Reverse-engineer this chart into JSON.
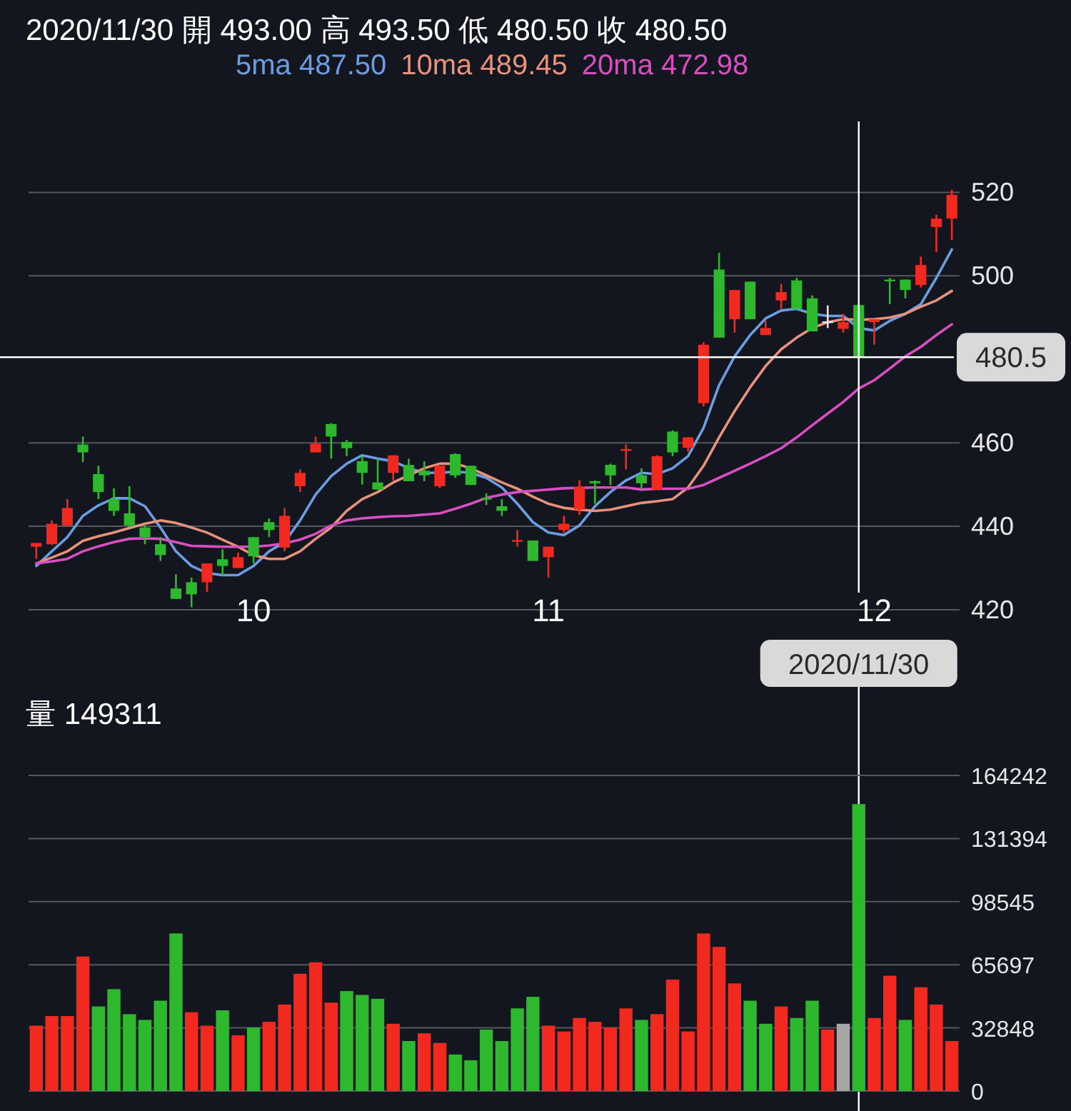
{
  "chart_data": [
    {
      "type": "candlestick",
      "title": "2020/11/30  開 493.00 高 493.50 低 480.50 收 480.50",
      "categories": [
        null,
        null,
        null,
        null,
        null,
        null,
        null,
        null,
        null,
        null,
        null,
        null,
        null,
        null,
        "10",
        null,
        null,
        null,
        null,
        null,
        null,
        null,
        null,
        null,
        null,
        null,
        null,
        null,
        null,
        null,
        null,
        null,
        null,
        "11",
        null,
        null,
        null,
        null,
        null,
        null,
        null,
        null,
        null,
        null,
        null,
        null,
        null,
        null,
        null,
        null,
        null,
        null,
        null,
        "2020/11/30",
        "12",
        null,
        null,
        null,
        null,
        null
      ],
      "ylim": [
        420,
        537
      ],
      "yticks": [
        420,
        440,
        460,
        500,
        520
      ],
      "grid": "y",
      "legend": "top",
      "ref_lines": [
        {
          "axis": "y",
          "value": 480.5,
          "label": "480.5",
          "color": "#ffffff"
        },
        {
          "axis": "x",
          "value": "2020/11/30",
          "color": "#ffffff"
        }
      ],
      "series": [
        {
          "ohlc": [
            [
              435.1,
              436.0,
              432.2,
              436.0
            ],
            [
              435.7,
              441.4,
              435.5,
              440.6
            ],
            [
              440.2,
              446.5,
              440.0,
              444.4
            ],
            [
              459.6,
              461.5,
              455.4,
              457.7
            ],
            [
              452.5,
              454.5,
              446.5,
              448.2
            ],
            [
              446.5,
              449.1,
              442.5,
              443.7
            ],
            [
              443.1,
              449.6,
              439.9,
              440.2
            ],
            [
              439.7,
              440.2,
              435.7,
              437.4
            ],
            [
              435.7,
              437.4,
              431.7,
              433.1
            ],
            [
              425.1,
              428.5,
              422.6,
              422.6
            ],
            [
              426.6,
              427.7,
              420.6,
              423.7
            ],
            [
              426.6,
              431.1,
              424.3,
              431.1
            ],
            [
              432.1,
              434.5,
              428.3,
              430.5
            ],
            [
              430.0,
              433.7,
              430.0,
              432.6
            ],
            [
              437.4,
              437.4,
              431.1,
              432.8
            ],
            [
              441.0,
              441.9,
              437.4,
              439.1
            ],
            [
              434.9,
              444.4,
              434.0,
              442.5
            ],
            [
              449.6,
              453.6,
              448.2,
              452.8
            ],
            [
              457.7,
              461.5,
              457.7,
              459.8
            ],
            [
              464.5,
              464.7,
              456.2,
              461.5
            ],
            [
              460.2,
              460.7,
              456.8,
              458.7
            ],
            [
              455.6,
              456.8,
              450.0,
              452.8
            ],
            [
              450.5,
              456.2,
              448.8,
              448.8
            ],
            [
              452.8,
              457.0,
              451.0,
              457.0
            ],
            [
              454.7,
              456.2,
              450.8,
              450.8
            ],
            [
              453.3,
              455.6,
              450.8,
              452.2
            ],
            [
              449.6,
              454.5,
              449.1,
              454.5
            ],
            [
              457.3,
              457.5,
              451.6,
              452.2
            ],
            [
              454.5,
              454.5,
              449.9,
              449.9
            ],
            [
              446.8,
              447.9,
              445.1,
              446.5
            ],
            [
              444.8,
              446.5,
              442.5,
              443.7
            ],
            [
              436.4,
              439.1,
              435.1,
              436.7
            ],
            [
              436.6,
              436.6,
              431.7,
              431.7
            ],
            [
              432.6,
              435.1,
              427.7,
              435.1
            ],
            [
              439.1,
              442.5,
              438.5,
              440.6
            ],
            [
              444.0,
              451.0,
              442.7,
              449.4
            ],
            [
              450.8,
              451.0,
              445.4,
              450.3
            ],
            [
              454.7,
              455.0,
              449.9,
              452.2
            ],
            [
              458.2,
              459.6,
              453.6,
              458.5
            ],
            [
              452.2,
              453.9,
              448.8,
              450.3
            ],
            [
              448.8,
              457.0,
              448.8,
              456.8
            ],
            [
              462.7,
              463.0,
              456.8,
              457.7
            ],
            [
              458.8,
              461.3,
              457.9,
              461.3
            ],
            [
              469.5,
              484.1,
              468.7,
              483.5
            ],
            [
              501.5,
              505.5,
              485.2,
              485.2
            ],
            [
              489.6,
              496.6,
              486.4,
              496.6
            ],
            [
              498.6,
              498.6,
              489.6,
              489.6
            ],
            [
              485.8,
              489.2,
              485.8,
              487.5
            ],
            [
              494.1,
              498.1,
              492.1,
              496.1
            ],
            [
              498.9,
              499.5,
              492.1,
              492.1
            ],
            [
              494.6,
              495.3,
              486.7,
              486.7
            ],
            [
              489.1,
              492.9,
              487.5,
              489.1
            ],
            [
              487.3,
              490.9,
              486.4,
              488.9
            ],
            [
              493.0,
              493.5,
              480.5,
              480.5
            ],
            [
              488.9,
              489.6,
              483.5,
              489.6
            ],
            [
              499.1,
              499.5,
              493.2,
              498.7
            ],
            [
              499.1,
              499.1,
              494.6,
              496.6
            ],
            [
              497.8,
              504.6,
              497.2,
              502.6
            ],
            [
              511.7,
              514.6,
              505.7,
              513.7
            ],
            [
              513.7,
              520.6,
              508.6,
              519.4
            ]
          ],
          "colors": [
            "#f2291f",
            "#f2291f",
            "#f2291f",
            "#2eb82e",
            "#2eb82e",
            "#2eb82e",
            "#2eb82e",
            "#2eb82e",
            "#2eb82e",
            "#2eb82e",
            "#2eb82e",
            "#f2291f",
            "#2eb82e",
            "#f2291f",
            "#2eb82e",
            "#2eb82e",
            "#f2291f",
            "#f2291f",
            "#f2291f",
            "#2eb82e",
            "#2eb82e",
            "#2eb82e",
            "#2eb82e",
            "#f2291f",
            "#2eb82e",
            "#2eb82e",
            "#f2291f",
            "#2eb82e",
            "#2eb82e",
            "#2eb82e",
            "#2eb82e",
            "#f2291f",
            "#2eb82e",
            "#f2291f",
            "#f2291f",
            "#f2291f",
            "#2eb82e",
            "#2eb82e",
            "#f2291f",
            "#2eb82e",
            "#f2291f",
            "#2eb82e",
            "#f2291f",
            "#f2291f",
            "#2eb82e",
            "#f2291f",
            "#2eb82e",
            "#f2291f",
            "#f2291f",
            "#2eb82e",
            "#2eb82e",
            "#e6e6e6",
            "#f2291f",
            "#2eb82e",
            "#f2291f",
            "#2eb82e",
            "#2eb82e",
            "#f2291f",
            "#f2291f",
            "#f2291f"
          ]
        },
        {
          "type": "line",
          "name": "5ma 487.50",
          "color": "#6b9de3",
          "values": [
            430.5,
            434.0,
            437.4,
            442.5,
            445.0,
            446.7,
            446.7,
            444.8,
            439.7,
            434.0,
            430.5,
            428.8,
            428.3,
            428.3,
            430.5,
            434.0,
            436.2,
            441.4,
            447.6,
            452.0,
            455.0,
            457.0,
            456.2,
            455.6,
            453.9,
            452.8,
            452.8,
            453.1,
            452.8,
            451.6,
            449.3,
            445.4,
            441.0,
            438.5,
            437.9,
            440.2,
            444.8,
            448.2,
            451.0,
            452.8,
            452.5,
            453.9,
            456.8,
            463.6,
            473.8,
            480.7,
            485.8,
            489.8,
            491.7,
            492.1,
            490.9,
            490.4,
            490.4,
            487.5,
            486.9,
            489.2,
            490.9,
            493.2,
            499.5,
            506.3
          ]
        },
        {
          "type": "line",
          "name": "10ma 489.45",
          "color": "#e8917b",
          "values": [
            431.1,
            432.5,
            434.0,
            436.5,
            437.6,
            438.5,
            439.6,
            440.6,
            441.4,
            440.8,
            439.7,
            438.5,
            436.8,
            435.1,
            433.1,
            432.2,
            432.2,
            434.0,
            437.0,
            439.7,
            443.7,
            446.5,
            448.2,
            450.5,
            452.2,
            453.9,
            455.0,
            455.0,
            453.9,
            452.2,
            450.5,
            449.0,
            447.1,
            445.4,
            444.4,
            444.0,
            443.7,
            444.0,
            444.8,
            445.6,
            446.0,
            446.5,
            449.3,
            454.5,
            461.3,
            467.6,
            473.3,
            478.4,
            482.4,
            485.2,
            487.5,
            488.9,
            489.6,
            489.5,
            489.6,
            490.0,
            490.9,
            492.6,
            494.1,
            496.4
          ]
        },
        {
          "type": "line",
          "name": "20ma 472.98",
          "color": "#d94fc2",
          "values": [
            431.1,
            431.6,
            432.2,
            434.0,
            435.2,
            436.2,
            437.0,
            437.1,
            437.0,
            436.2,
            435.3,
            435.2,
            435.1,
            435.1,
            435.1,
            435.4,
            435.9,
            436.8,
            438.2,
            440.2,
            441.4,
            441.9,
            442.2,
            442.4,
            442.5,
            442.8,
            443.1,
            444.2,
            445.4,
            446.8,
            447.6,
            448.2,
            448.5,
            448.8,
            449.1,
            449.2,
            449.3,
            449.3,
            449.3,
            448.8,
            449.0,
            449.0,
            449.0,
            449.9,
            451.6,
            453.3,
            455.0,
            456.8,
            458.7,
            461.3,
            464.2,
            467.0,
            469.8,
            473.0,
            475.0,
            477.8,
            480.7,
            483.0,
            485.8,
            488.4
          ]
        }
      ]
    },
    {
      "type": "bar",
      "title": "量 149311",
      "categories": [
        null,
        null,
        null,
        null,
        null,
        null,
        null,
        null,
        null,
        null,
        null,
        null,
        null,
        null,
        null,
        null,
        null,
        null,
        null,
        null,
        null,
        null,
        null,
        null,
        null,
        null,
        null,
        null,
        null,
        null,
        null,
        null,
        null,
        null,
        null,
        null,
        null,
        null,
        null,
        null,
        null,
        null,
        null,
        null,
        null,
        null,
        null,
        null,
        null,
        null,
        null,
        null,
        null,
        null,
        null,
        null,
        null,
        null,
        null,
        null
      ],
      "ylim": [
        0,
        164242
      ],
      "yticks": [
        0,
        32848,
        65697,
        98545,
        131394,
        164242
      ],
      "grid": "y",
      "tick_labels": "y",
      "values": [
        34000,
        39000,
        39000,
        70000,
        44000,
        53000,
        40000,
        37000,
        47000,
        82000,
        41000,
        34000,
        42000,
        29000,
        33000,
        36000,
        45000,
        61000,
        67000,
        46000,
        52000,
        50000,
        48000,
        35000,
        26000,
        30000,
        25000,
        19000,
        16000,
        32000,
        26000,
        43000,
        49000,
        34000,
        31000,
        38000,
        36000,
        33000,
        43000,
        37000,
        40000,
        58000,
        31000,
        82000,
        75000,
        56000,
        47000,
        35000,
        44000,
        38000,
        47000,
        32000,
        35000,
        149311,
        38000,
        60000,
        37000,
        54000,
        45000,
        26000
      ],
      "colors": [
        "#f2291f",
        "#f2291f",
        "#f2291f",
        "#f2291f",
        "#2eb82e",
        "#2eb82e",
        "#2eb82e",
        "#2eb82e",
        "#2eb82e",
        "#2eb82e",
        "#f2291f",
        "#f2291f",
        "#2eb82e",
        "#f2291f",
        "#2eb82e",
        "#f2291f",
        "#f2291f",
        "#f2291f",
        "#f2291f",
        "#f2291f",
        "#2eb82e",
        "#2eb82e",
        "#2eb82e",
        "#f2291f",
        "#2eb82e",
        "#f2291f",
        "#f2291f",
        "#2eb82e",
        "#2eb82e",
        "#2eb82e",
        "#2eb82e",
        "#2eb82e",
        "#2eb82e",
        "#f2291f",
        "#f2291f",
        "#f2291f",
        "#f2291f",
        "#f2291f",
        "#f2291f",
        "#2eb82e",
        "#f2291f",
        "#f2291f",
        "#f2291f",
        "#f2291f",
        "#f2291f",
        "#f2291f",
        "#2eb82e",
        "#2eb82e",
        "#f2291f",
        "#2eb82e",
        "#2eb82e",
        "#f2291f",
        "#a6a6a6",
        "#2eb82e",
        "#f2291f",
        "#f2291f",
        "#2eb82e",
        "#f2291f",
        "#f2291f",
        "#f2291f"
      ]
    }
  ]
}
